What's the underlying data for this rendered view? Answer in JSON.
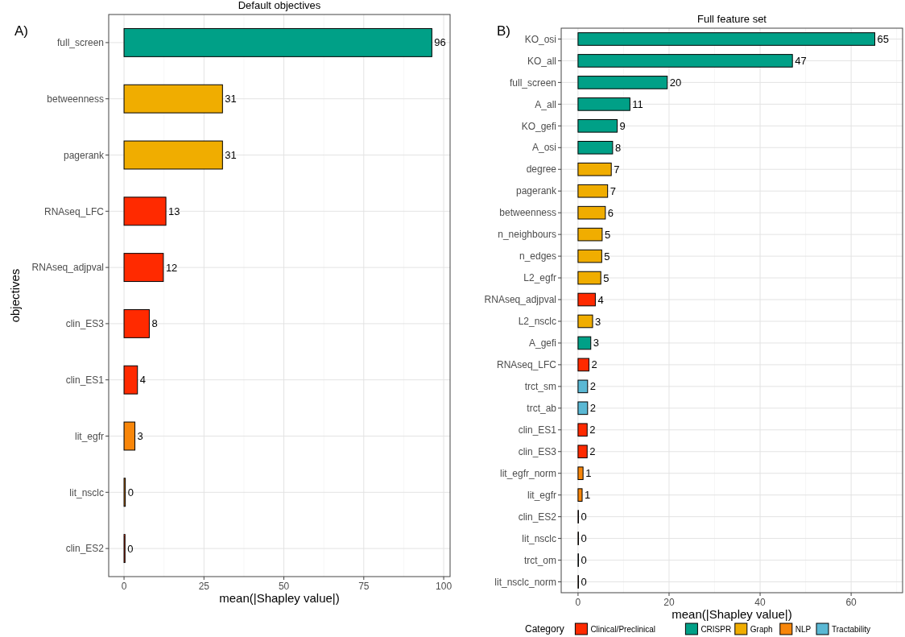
{
  "chart_data": [
    {
      "type": "bar",
      "orientation": "horizontal",
      "title": "Default objectives",
      "xlabel": "mean(|Shapley value|)",
      "ylabel": "objectives",
      "annotations": [
        "A)"
      ],
      "categories": [
        "full_screen",
        "betweenness",
        "pagerank",
        "RNAseq_LFC",
        "RNAseq_adjpval",
        "clin_ES3",
        "clin_ES1",
        "lit_egfr",
        "lit_nsclc",
        "clin_ES2"
      ],
      "values": [
        96.3,
        30.8,
        30.8,
        13.1,
        12.3,
        7.9,
        4.2,
        3.4,
        0.4,
        0.3
      ],
      "value_labels": [
        "96",
        "31",
        "31",
        "13",
        "12",
        "8",
        "4",
        "3",
        "0",
        "0"
      ],
      "colors": [
        "#00a087",
        "#f0ad00",
        "#f0ad00",
        "#ff2a00",
        "#ff2a00",
        "#ff2a00",
        "#ff2a00",
        "#f8860a",
        "#f8860a",
        "#ff2a00"
      ],
      "xlim": [
        -4.8,
        102
      ],
      "xticks": [
        0,
        25,
        50,
        75,
        100
      ],
      "grid": true,
      "legend": false
    },
    {
      "type": "bar",
      "orientation": "horizontal",
      "title": "Full feature set",
      "xlabel": "mean(|Shapley value|)",
      "annotations": [
        "B)"
      ],
      "legend_title": "Category",
      "legend": "bottom",
      "categories": [
        "KO_osi",
        "KO_all",
        "full_screen",
        "A_all",
        "KO_gefi",
        "A_osi",
        "degree",
        "pagerank",
        "betweenness",
        "n_neighbours",
        "n_edges",
        "L2_egfr",
        "RNAseq_adjpval",
        "L2_nsclc",
        "A_gefi",
        "RNAseq_LFC",
        "trct_sm",
        "trct_ab",
        "clin_ES1",
        "clin_ES3",
        "lit_egfr_norm",
        "lit_egfr",
        "clin_ES2",
        "lit_nsclc",
        "trct_om",
        "lit_nsclc_norm"
      ],
      "series": [
        {
          "name": "Clinical/Preclinical",
          "color": "#ff2a00",
          "values": [
            null,
            null,
            null,
            null,
            null,
            null,
            null,
            null,
            null,
            null,
            null,
            null,
            3.8,
            null,
            null,
            2.4,
            null,
            null,
            2.0,
            2.0,
            null,
            null,
            0.1,
            null,
            null,
            null
          ],
          "value_labels": [
            null,
            null,
            null,
            null,
            null,
            null,
            null,
            null,
            null,
            null,
            null,
            null,
            "4",
            null,
            null,
            "2",
            null,
            null,
            "2",
            "2",
            null,
            null,
            "0",
            null,
            null,
            null
          ]
        },
        {
          "name": "CRISPR",
          "color": "#00a087",
          "values": [
            65.2,
            47.1,
            19.6,
            11.4,
            8.6,
            7.6,
            null,
            null,
            null,
            null,
            null,
            null,
            null,
            null,
            2.8,
            null,
            null,
            null,
            null,
            null,
            null,
            null,
            null,
            null,
            null,
            null
          ],
          "value_labels": [
            "65",
            "47",
            "20",
            "11",
            "9",
            "8",
            null,
            null,
            null,
            null,
            null,
            null,
            null,
            null,
            "3",
            null,
            null,
            null,
            null,
            null,
            null,
            null,
            null,
            null,
            null,
            null
          ]
        },
        {
          "name": "Graph",
          "color": "#f0ad00",
          "values": [
            null,
            null,
            null,
            null,
            null,
            null,
            7.3,
            6.5,
            6.0,
            5.3,
            5.2,
            5.0,
            null,
            3.2,
            null,
            null,
            null,
            null,
            null,
            null,
            null,
            null,
            null,
            null,
            null,
            null
          ],
          "value_labels": [
            null,
            null,
            null,
            null,
            null,
            null,
            "7",
            "7",
            "6",
            "5",
            "5",
            "5",
            null,
            "3",
            null,
            null,
            null,
            null,
            null,
            null,
            null,
            null,
            null,
            null,
            null,
            null
          ]
        },
        {
          "name": "NLP",
          "color": "#f8860a",
          "values": [
            null,
            null,
            null,
            null,
            null,
            null,
            null,
            null,
            null,
            null,
            null,
            null,
            null,
            null,
            null,
            null,
            null,
            null,
            null,
            null,
            1.1,
            0.9,
            null,
            0.1,
            null,
            0.1
          ],
          "value_labels": [
            null,
            null,
            null,
            null,
            null,
            null,
            null,
            null,
            null,
            null,
            null,
            null,
            null,
            null,
            null,
            null,
            null,
            null,
            null,
            null,
            "1",
            "1",
            null,
            "0",
            null,
            "0"
          ]
        },
        {
          "name": "Tractability",
          "color": "#5ab8d4",
          "values": [
            null,
            null,
            null,
            null,
            null,
            null,
            null,
            null,
            null,
            null,
            null,
            null,
            null,
            null,
            null,
            null,
            2.1,
            2.1,
            null,
            null,
            null,
            null,
            null,
            null,
            0.1,
            null
          ],
          "value_labels": [
            null,
            null,
            null,
            null,
            null,
            null,
            null,
            null,
            null,
            null,
            null,
            null,
            null,
            null,
            null,
            null,
            "2",
            "2",
            null,
            null,
            null,
            null,
            null,
            null,
            "0",
            null
          ]
        }
      ],
      "xlim": [
        -3.7,
        71.3
      ],
      "xticks": [
        0,
        20,
        40,
        60
      ],
      "grid": true
    }
  ]
}
